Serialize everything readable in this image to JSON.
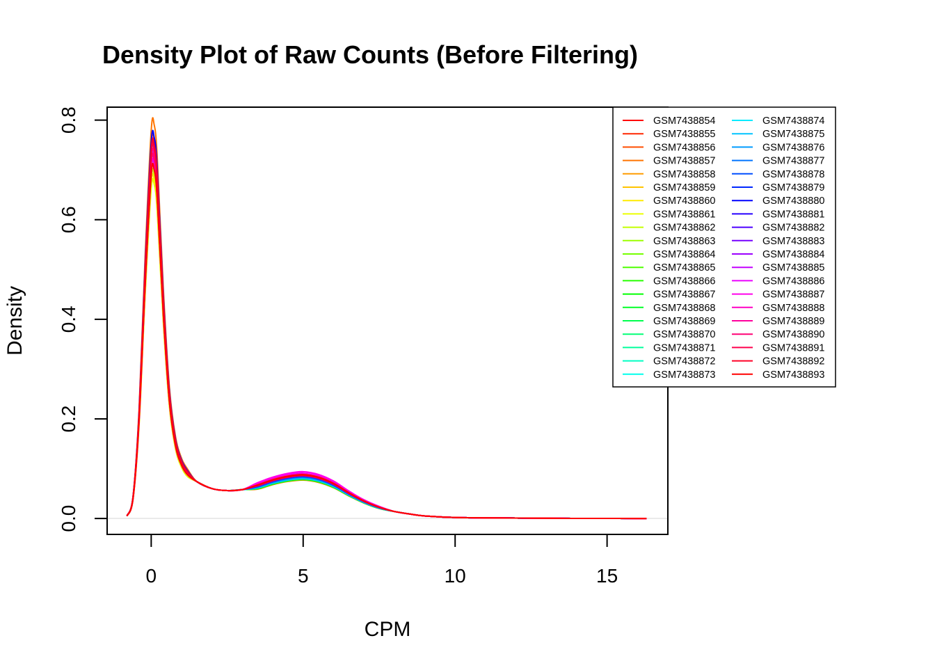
{
  "chart_data": {
    "type": "line",
    "title": "Density Plot of Raw Counts (Before Filtering)",
    "xlabel": "CPM",
    "ylabel": "Density",
    "xlim": [
      -1.45,
      17.0
    ],
    "ylim": [
      -0.032,
      0.826
    ],
    "xticks": [
      "0",
      "5",
      "10",
      "15"
    ],
    "xtick_values": [
      0,
      5,
      10,
      15
    ],
    "yticks": [
      "0.0",
      "0.2",
      "0.4",
      "0.6",
      "0.8"
    ],
    "ytick_values": [
      0.0,
      0.2,
      0.4,
      0.6,
      0.8
    ],
    "legend_position": "top-right",
    "grid": false,
    "density_x": [
      -0.8,
      -0.6,
      -0.4,
      -0.2,
      0.0,
      0.1,
      0.2,
      0.4,
      0.6,
      0.8,
      1.0,
      1.2,
      1.5,
      2.0,
      2.5,
      3.0,
      3.5,
      4.0,
      4.5,
      5.0,
      5.5,
      6.0,
      6.5,
      7.0,
      7.5,
      8.0,
      8.5,
      9.0,
      10.0,
      11.0,
      12.0,
      13.0,
      14.0,
      15.0,
      16.0,
      16.3
    ],
    "base_density": [
      0.005,
      0.04,
      0.2,
      0.48,
      0.71,
      0.72,
      0.66,
      0.42,
      0.24,
      0.15,
      0.11,
      0.09,
      0.074,
      0.06,
      0.056,
      0.058,
      0.065,
      0.075,
      0.082,
      0.085,
      0.08,
      0.068,
      0.05,
      0.034,
      0.022,
      0.014,
      0.009,
      0.005,
      0.002,
      0.0012,
      0.0008,
      0.0004,
      0.0002,
      0.0001,
      0.0,
      0.0
    ],
    "series": [
      {
        "name": "GSM7438854",
        "color": "#FF0000",
        "peak": 0.745,
        "hump": 0.083
      },
      {
        "name": "GSM7438855",
        "color": "#FF2700",
        "peak": 0.74,
        "hump": 0.082
      },
      {
        "name": "GSM7438856",
        "color": "#FF4E00",
        "peak": 0.76,
        "hump": 0.078
      },
      {
        "name": "GSM7438857",
        "color": "#FF7500",
        "peak": 0.79,
        "hump": 0.077
      },
      {
        "name": "GSM7438858",
        "color": "#FF9C00",
        "peak": 0.7,
        "hump": 0.079
      },
      {
        "name": "GSM7438859",
        "color": "#FFC400",
        "peak": 0.69,
        "hump": 0.08
      },
      {
        "name": "GSM7438860",
        "color": "#FFEB00",
        "peak": 0.68,
        "hump": 0.081
      },
      {
        "name": "GSM7438861",
        "color": "#EBFF00",
        "peak": 0.67,
        "hump": 0.08
      },
      {
        "name": "GSM7438862",
        "color": "#C4FF00",
        "peak": 0.69,
        "hump": 0.079
      },
      {
        "name": "GSM7438863",
        "color": "#9CFF00",
        "peak": 0.7,
        "hump": 0.08
      },
      {
        "name": "GSM7438864",
        "color": "#75FF00",
        "peak": 0.71,
        "hump": 0.079
      },
      {
        "name": "GSM7438865",
        "color": "#4EFF00",
        "peak": 0.72,
        "hump": 0.078
      },
      {
        "name": "GSM7438866",
        "color": "#27FF00",
        "peak": 0.72,
        "hump": 0.078
      },
      {
        "name": "GSM7438867",
        "color": "#00FF00",
        "peak": 0.71,
        "hump": 0.079
      },
      {
        "name": "GSM7438868",
        "color": "#00FF27",
        "peak": 0.72,
        "hump": 0.08
      },
      {
        "name": "GSM7438869",
        "color": "#00FF4E",
        "peak": 0.71,
        "hump": 0.081
      },
      {
        "name": "GSM7438870",
        "color": "#00FF75",
        "peak": 0.72,
        "hump": 0.08
      },
      {
        "name": "GSM7438871",
        "color": "#00FF9C",
        "peak": 0.72,
        "hump": 0.08
      },
      {
        "name": "GSM7438872",
        "color": "#00FFC4",
        "peak": 0.73,
        "hump": 0.081
      },
      {
        "name": "GSM7438873",
        "color": "#00FFEB",
        "peak": 0.72,
        "hump": 0.082
      },
      {
        "name": "GSM7438874",
        "color": "#00EBFF",
        "peak": 0.73,
        "hump": 0.081
      },
      {
        "name": "GSM7438875",
        "color": "#00C4FF",
        "peak": 0.72,
        "hump": 0.08
      },
      {
        "name": "GSM7438876",
        "color": "#009CFF",
        "peak": 0.73,
        "hump": 0.082
      },
      {
        "name": "GSM7438877",
        "color": "#0075FF",
        "peak": 0.74,
        "hump": 0.083
      },
      {
        "name": "GSM7438878",
        "color": "#004EFF",
        "peak": 0.75,
        "hump": 0.084
      },
      {
        "name": "GSM7438879",
        "color": "#0027FF",
        "peak": 0.74,
        "hump": 0.085
      },
      {
        "name": "GSM7438880",
        "color": "#0000FF",
        "peak": 0.765,
        "hump": 0.088
      },
      {
        "name": "GSM7438881",
        "color": "#2700FF",
        "peak": 0.73,
        "hump": 0.086
      },
      {
        "name": "GSM7438882",
        "color": "#4E00FF",
        "peak": 0.72,
        "hump": 0.085
      },
      {
        "name": "GSM7438883",
        "color": "#7500FF",
        "peak": 0.72,
        "hump": 0.086
      },
      {
        "name": "GSM7438884",
        "color": "#9C00FF",
        "peak": 0.71,
        "hump": 0.087
      },
      {
        "name": "GSM7438885",
        "color": "#C400FF",
        "peak": 0.7,
        "hump": 0.09
      },
      {
        "name": "GSM7438886",
        "color": "#EB00FF",
        "peak": 0.71,
        "hump": 0.093
      },
      {
        "name": "GSM7438887",
        "color": "#FF00EB",
        "peak": 0.7,
        "hump": 0.094
      },
      {
        "name": "GSM7438888",
        "color": "#FF00C4",
        "peak": 0.72,
        "hump": 0.09
      },
      {
        "name": "GSM7438889",
        "color": "#FF009C",
        "peak": 0.73,
        "hump": 0.088
      },
      {
        "name": "GSM7438890",
        "color": "#FF0075",
        "peak": 0.72,
        "hump": 0.087
      },
      {
        "name": "GSM7438891",
        "color": "#FF004E",
        "peak": 0.74,
        "hump": 0.086
      },
      {
        "name": "GSM7438892",
        "color": "#FF0027",
        "peak": 0.75,
        "hump": 0.087
      },
      {
        "name": "GSM7438893",
        "color": "#FF0000",
        "peak": 0.7,
        "hump": 0.088
      }
    ]
  }
}
